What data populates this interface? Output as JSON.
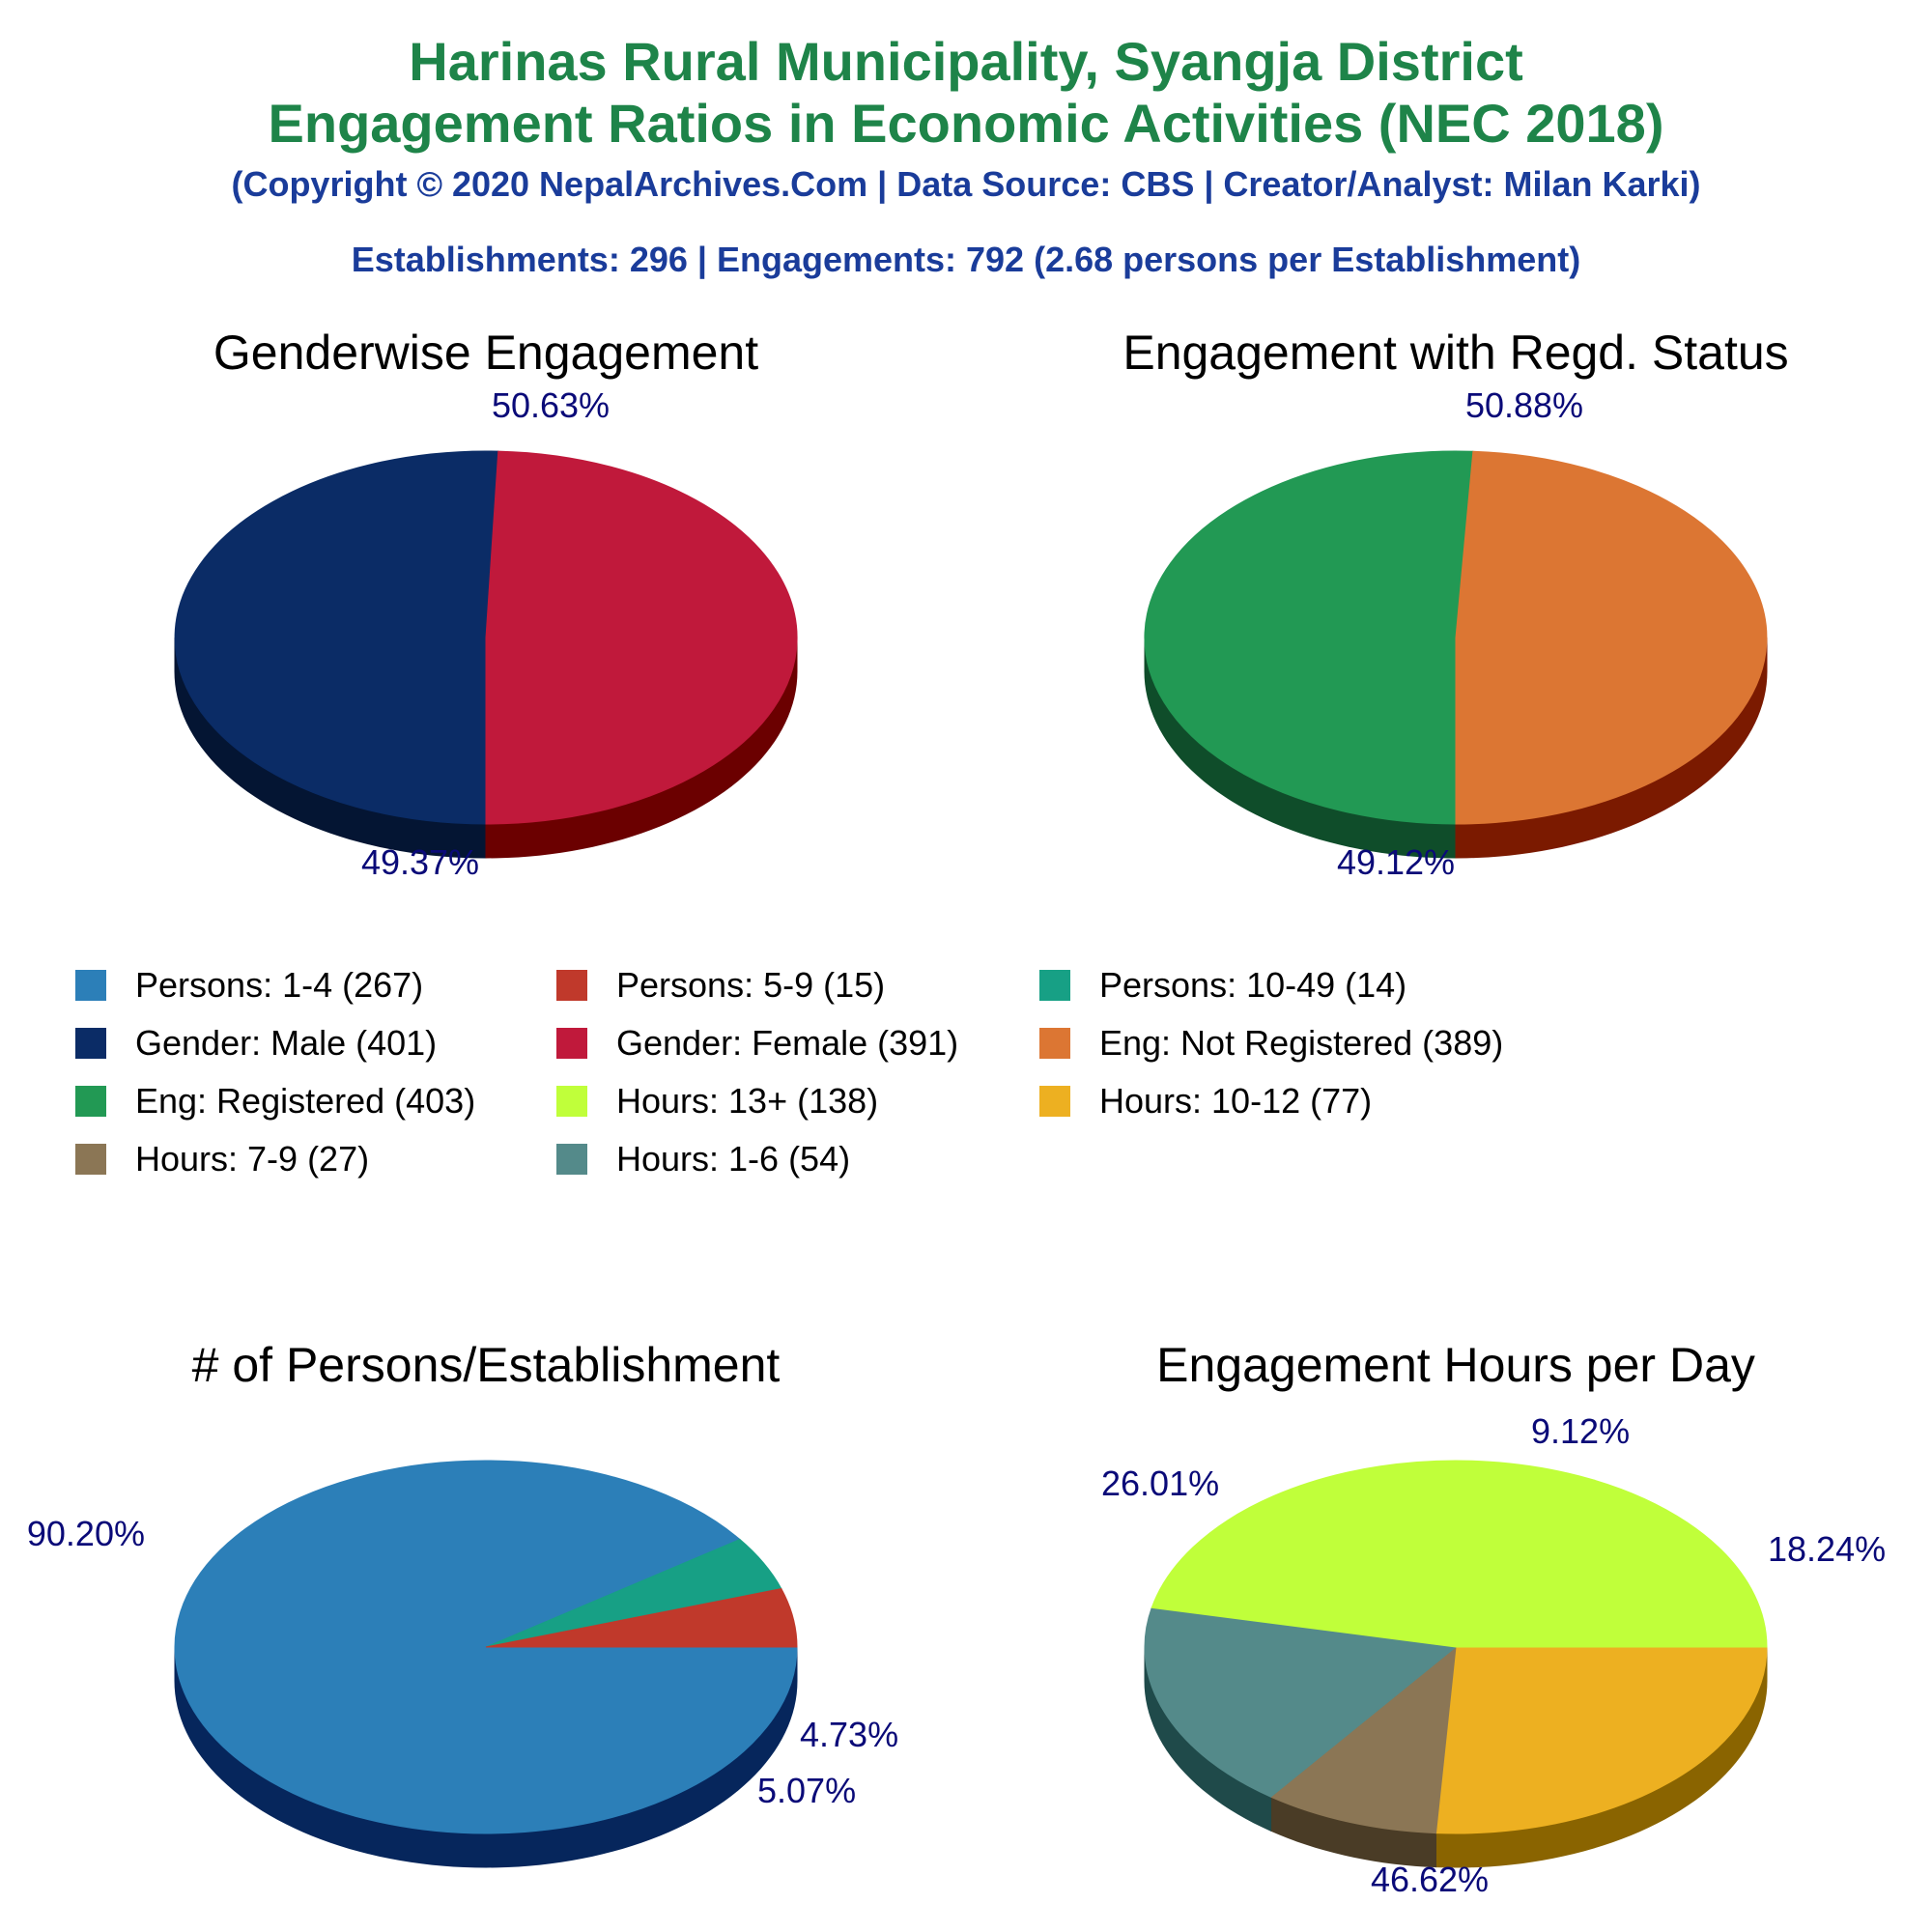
{
  "header": {
    "title_line1": "Harinas Rural Municipality, Syangja District",
    "title_line2": "Engagement Ratios in Economic Activities (NEC 2018)",
    "copyright": "(Copyright © 2020 NepalArchives.Com | Data Source: CBS | Creator/Analyst: Milan Karki)",
    "summary": "Establishments: 296 | Engagements: 792 (2.68 persons per Establishment)"
  },
  "legend": [
    {
      "label": "Persons: 1-4 (267)",
      "color": "#2c7fb8"
    },
    {
      "label": "Persons: 5-9 (15)",
      "color": "#c0392b"
    },
    {
      "label": "Persons: 10-49 (14)",
      "color": "#17a085"
    },
    {
      "label": "Gender: Male (401)",
      "color": "#0b2c66"
    },
    {
      "label": "Gender: Female (391)",
      "color": "#c0193b"
    },
    {
      "label": "Eng: Not Registered (389)",
      "color": "#dc7633"
    },
    {
      "label": "Eng: Registered (403)",
      "color": "#229954"
    },
    {
      "label": "Hours: 13+ (138)",
      "color": "#c0ff3a"
    },
    {
      "label": "Hours: 10-12 (77)",
      "color": "#edb021"
    },
    {
      "label": "Hours: 7-9 (27)",
      "color": "#8b7655"
    },
    {
      "label": "Hours: 1-6 (54)",
      "color": "#548a8a"
    }
  ],
  "chart_data": [
    {
      "type": "pie",
      "title": "Genderwise Engagement",
      "slices": [
        {
          "name": "Gender: Male",
          "value": 401,
          "label": "50.63%",
          "color": "#0b2c66",
          "side": "#041533"
        },
        {
          "name": "Gender: Female",
          "value": 391,
          "label": "49.37%",
          "color": "#c0193b",
          "side": "#6b0000"
        }
      ]
    },
    {
      "type": "pie",
      "title": "Engagement with Regd. Status",
      "slices": [
        {
          "name": "Eng: Registered",
          "value": 403,
          "label": "50.88%",
          "color": "#229954",
          "side": "#0f4d2a"
        },
        {
          "name": "Eng: Not Registered",
          "value": 389,
          "label": "49.12%",
          "color": "#dc7633",
          "side": "#7b1a00"
        }
      ]
    },
    {
      "type": "pie",
      "title": "# of Persons/Establishment",
      "slices": [
        {
          "name": "Persons: 1-4",
          "value": 267,
          "label": "90.20%",
          "color": "#2c7fb8",
          "side": "#06265c"
        },
        {
          "name": "Persons: 10-49",
          "value": 14,
          "label": "4.73%",
          "color": "#17a085",
          "side": "#063d30"
        },
        {
          "name": "Persons: 5-9",
          "value": 15,
          "label": "5.07%",
          "color": "#c0392b",
          "side": "#6b0000"
        }
      ]
    },
    {
      "type": "pie",
      "title": "Engagement Hours per Day",
      "slices": [
        {
          "name": "Hours: 10-12",
          "value": 77,
          "label": "26.01%",
          "color": "#edb021",
          "side": "#8a6400"
        },
        {
          "name": "Hours: 7-9",
          "value": 27,
          "label": "9.12%",
          "color": "#8b7655",
          "side": "#4a3c26"
        },
        {
          "name": "Hours: 1-6",
          "value": 54,
          "label": "18.24%",
          "color": "#548a8a",
          "side": "#1f4a4a"
        },
        {
          "name": "Hours: 13+",
          "value": 138,
          "label": "46.62%",
          "color": "#c0ff3a",
          "side": "#6aa400"
        }
      ]
    }
  ]
}
